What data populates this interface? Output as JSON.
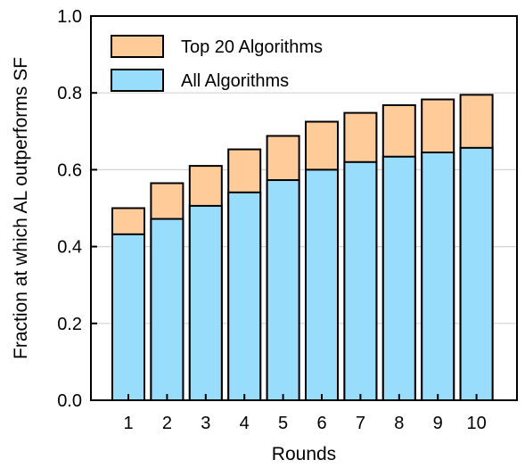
{
  "chart_data": {
    "type": "bar",
    "stacked": false,
    "overlay": true,
    "categories": [
      "1",
      "2",
      "3",
      "4",
      "5",
      "6",
      "7",
      "8",
      "9",
      "10"
    ],
    "series": [
      {
        "name": "Top 20 Algorithms",
        "color": "#ffcc99",
        "values": [
          0.5,
          0.565,
          0.61,
          0.653,
          0.688,
          0.725,
          0.748,
          0.768,
          0.783,
          0.795
        ]
      },
      {
        "name": "All Algorithms",
        "color": "#99ddfc",
        "values": [
          0.432,
          0.472,
          0.506,
          0.541,
          0.573,
          0.6,
          0.62,
          0.634,
          0.645,
          0.657
        ]
      }
    ],
    "xlabel": "Rounds",
    "ylabel": "Fraction at which AL outperforms SF",
    "ylim": [
      0,
      1.0
    ],
    "yticks": [
      "0.0",
      "0.2",
      "0.4",
      "0.6",
      "0.8",
      "1.0"
    ],
    "grid": "horizontal",
    "legend": "top-left"
  }
}
